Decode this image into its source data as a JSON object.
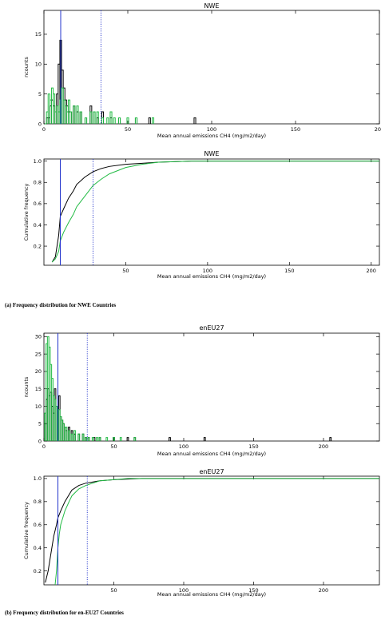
{
  "captions": {
    "a": "(a) Frequency distribution for NWE Countries",
    "b": "(b) Frequency distribution for en-EU27 Countries"
  },
  "colors": {
    "black_series": "#000000",
    "green_series": "#22bb44",
    "marker": "#2233cc"
  },
  "chart_data": [
    {
      "type": "line",
      "title": "NWE",
      "xlabel": "Mean annual emissions CH4 (mg/m2/day)",
      "ylabel": "ncounts",
      "xlim": [
        0,
        200
      ],
      "ylim": [
        0,
        19
      ],
      "xticks": [
        "0",
        "50",
        "100",
        "150",
        "200"
      ],
      "yticks": [
        "0",
        "5",
        "10",
        "15"
      ],
      "markers": {
        "solid": 10,
        "dotted": 34
      },
      "series": [
        {
          "style": "black-step",
          "x": [
            1,
            2,
            3,
            4,
            5,
            6,
            7,
            8,
            9,
            10,
            11,
            12,
            13,
            14,
            15,
            16,
            18,
            20,
            22,
            25,
            28,
            30,
            32,
            35,
            40,
            45,
            55,
            63,
            90
          ],
          "y": [
            0,
            1,
            1,
            3,
            4,
            3,
            2,
            5,
            10,
            14,
            9,
            6,
            4,
            3,
            2,
            2,
            3,
            2,
            2,
            1,
            3,
            2,
            1,
            2,
            1,
            1,
            1,
            1,
            1
          ]
        },
        {
          "style": "green-step",
          "x": [
            1,
            2,
            3,
            4,
            5,
            6,
            7,
            8,
            9,
            10,
            11,
            12,
            13,
            14,
            15,
            16,
            18,
            20,
            22,
            25,
            28,
            30,
            32,
            35,
            38,
            40,
            42,
            45,
            50,
            55,
            65
          ],
          "y": [
            0,
            2,
            5,
            4,
            6,
            5,
            2,
            3,
            2,
            4,
            6,
            4,
            3,
            2,
            4,
            2,
            3,
            3,
            2,
            1,
            2,
            2,
            2,
            1,
            1,
            2,
            1,
            1,
            1,
            1,
            1
          ]
        }
      ]
    },
    {
      "type": "line",
      "title": "NWE",
      "xlabel": "Mean annual emissions CH4 (mg/m2/day)",
      "ylabel": "Cumulative frequency",
      "xlim": [
        0,
        205
      ],
      "ylim": [
        0.02,
        1.02
      ],
      "xticks": [
        "50",
        "100",
        "150",
        "200"
      ],
      "yticks": [
        "0.2",
        "0.4",
        "0.6",
        "0.8",
        "1.0"
      ],
      "markers": {
        "solid": 10,
        "dotted": 30
      },
      "series": [
        {
          "style": "black",
          "x": [
            5,
            7,
            9,
            10,
            12,
            15,
            18,
            20,
            25,
            30,
            35,
            40,
            50,
            60,
            70,
            90,
            205
          ],
          "y": [
            0.05,
            0.1,
            0.3,
            0.48,
            0.55,
            0.65,
            0.72,
            0.78,
            0.85,
            0.9,
            0.93,
            0.95,
            0.97,
            0.98,
            0.99,
            1.0,
            1.0
          ]
        },
        {
          "style": "green",
          "x": [
            5,
            7,
            9,
            10,
            12,
            15,
            18,
            20,
            25,
            30,
            35,
            40,
            50,
            60,
            70,
            90,
            205
          ],
          "y": [
            0.05,
            0.08,
            0.15,
            0.25,
            0.33,
            0.42,
            0.5,
            0.57,
            0.67,
            0.77,
            0.83,
            0.88,
            0.94,
            0.97,
            0.99,
            1.0,
            1.0
          ]
        }
      ]
    },
    {
      "type": "line",
      "title": "enEU27",
      "xlabel": "Mean annual emissions CH4 (mg/m2/day)",
      "ylabel": "ncounts",
      "xlim": [
        0,
        240
      ],
      "ylim": [
        0,
        31
      ],
      "xticks": [
        "0",
        "50",
        "100",
        "150",
        "200"
      ],
      "yticks": [
        "0",
        "5",
        "10",
        "15",
        "20",
        "25",
        "30"
      ],
      "markers": {
        "solid": 10,
        "dotted": 31
      },
      "series": [
        {
          "style": "black-step",
          "x": [
            1,
            2,
            3,
            4,
            5,
            6,
            7,
            8,
            9,
            10,
            11,
            12,
            13,
            14,
            15,
            16,
            18,
            20,
            22,
            25,
            28,
            30,
            32,
            36,
            40,
            50,
            60,
            65,
            90,
            115,
            205
          ],
          "y": [
            5,
            12,
            15,
            13,
            14,
            10,
            8,
            15,
            10,
            6,
            13,
            7,
            6,
            5,
            4,
            3,
            4,
            3,
            2,
            2,
            2,
            1,
            1,
            1,
            1,
            1,
            1,
            1,
            1,
            1,
            1
          ]
        },
        {
          "style": "green-step",
          "x": [
            1,
            2,
            3,
            4,
            5,
            6,
            7,
            8,
            9,
            10,
            11,
            12,
            13,
            14,
            15,
            16,
            18,
            20,
            22,
            25,
            28,
            30,
            32,
            35,
            38,
            40,
            45,
            50,
            55,
            65
          ],
          "y": [
            8,
            28,
            30,
            27,
            22,
            18,
            13,
            12,
            10,
            8,
            9,
            7,
            6,
            5,
            4,
            4,
            3,
            2,
            3,
            2,
            2,
            1,
            1,
            1,
            1,
            1,
            1,
            1,
            1,
            1
          ]
        }
      ]
    },
    {
      "type": "line",
      "title": "enEU27",
      "xlabel": "Mean annual emissions CH4 (mg/m2/day)",
      "ylabel": "Cumulative frequency",
      "xlim": [
        0,
        240
      ],
      "ylim": [
        0.08,
        1.02
      ],
      "xticks": [
        "50",
        "100",
        "150",
        "200"
      ],
      "yticks": [
        "0.2",
        "0.4",
        "0.6",
        "0.8",
        "1.0"
      ],
      "markers": {
        "solid": 10,
        "dotted": 31
      },
      "series": [
        {
          "style": "black",
          "x": [
            1,
            3,
            5,
            7,
            9,
            10,
            12,
            15,
            18,
            20,
            25,
            30,
            35,
            40,
            50,
            60,
            70,
            90,
            240
          ],
          "y": [
            0.1,
            0.2,
            0.35,
            0.5,
            0.6,
            0.66,
            0.72,
            0.8,
            0.86,
            0.9,
            0.94,
            0.96,
            0.97,
            0.98,
            0.99,
            0.995,
            1.0,
            1.0,
            1.0
          ]
        },
        {
          "style": "green",
          "x": [
            8,
            9,
            10,
            11,
            12,
            15,
            18,
            20,
            25,
            30,
            35,
            40,
            50,
            60,
            70,
            90,
            240
          ],
          "y": [
            0.08,
            0.2,
            0.4,
            0.52,
            0.6,
            0.72,
            0.8,
            0.85,
            0.91,
            0.94,
            0.96,
            0.98,
            0.99,
            1.0,
            1.0,
            1.0,
            1.0
          ]
        }
      ]
    }
  ]
}
